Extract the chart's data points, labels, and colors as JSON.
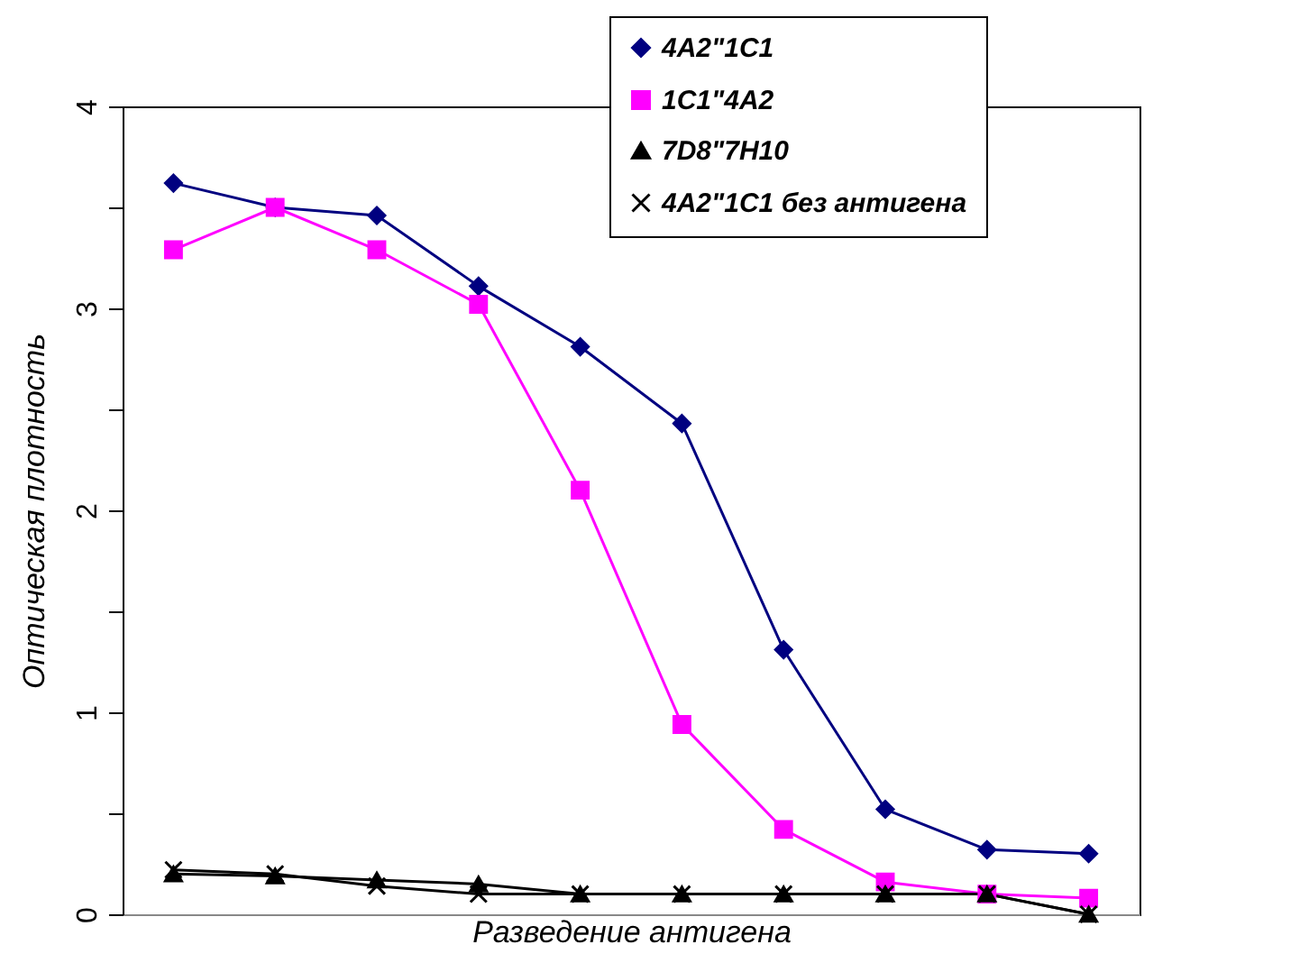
{
  "chart_data": {
    "type": "line",
    "xlabel": "Разведение антигена",
    "ylabel": "Оптическая плотность",
    "categories": [
      null,
      null,
      null,
      null,
      null,
      null,
      null,
      null,
      null,
      null
    ],
    "series": [
      {
        "name": "4A2\"1C1",
        "color": "#000080",
        "marker": "diamond",
        "values": [
          3.62,
          3.5,
          3.46,
          3.11,
          2.81,
          2.43,
          1.31,
          0.52,
          0.32,
          0.3
        ]
      },
      {
        "name": "1C1\"4A2",
        "color": "#ff00ff",
        "marker": "square",
        "values": [
          3.29,
          3.5,
          3.29,
          3.02,
          2.1,
          0.94,
          0.42,
          0.16,
          0.1,
          0.08
        ]
      },
      {
        "name": "7D8\"7H10",
        "color": "#000000",
        "marker": "triangle",
        "values": [
          0.2,
          0.19,
          0.17,
          0.15,
          0.1,
          0.1,
          0.1,
          0.1,
          0.1,
          0.0
        ]
      },
      {
        "name": "4A2\"1C1 без антигена",
        "color": "#000000",
        "marker": "cross",
        "values": [
          0.22,
          0.2,
          0.14,
          0.1,
          0.1,
          0.1,
          0.1,
          0.1,
          0.1,
          0.0
        ]
      }
    ],
    "ylim": [
      0,
      4
    ],
    "yticks": [
      0,
      {
        "value": 0.5,
        "label": null
      },
      1,
      {
        "value": 1.5,
        "label": null
      },
      2,
      {
        "value": 2.5,
        "label": null
      },
      3,
      {
        "value": 3.5,
        "label": null
      },
      4
    ],
    "grid": false,
    "legend": "top right",
    "line_style": "solid"
  }
}
